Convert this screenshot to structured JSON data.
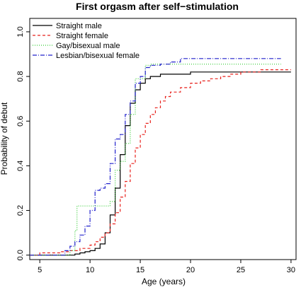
{
  "chart_data": {
    "type": "line",
    "title": "First orgasm after self−stimulation",
    "xlabel": "Age (years)",
    "ylabel": "Probability of debut",
    "xlim": [
      4,
      30.5
    ],
    "ylim": [
      -0.02,
      1.06
    ],
    "x_ticks": [
      5,
      10,
      15,
      20,
      25,
      30
    ],
    "y_ticks": [
      0.0,
      0.2,
      0.4,
      0.6,
      0.8,
      1.0
    ],
    "x_tick_labels": [
      "5",
      "10",
      "15",
      "20",
      "25",
      "30"
    ],
    "y_tick_labels": [
      "0.0",
      "0.2",
      "0.4",
      "0.6",
      "0.8",
      "1.0"
    ],
    "grid": false,
    "legend_position": "top-left",
    "series": [
      {
        "name": "Straight male",
        "color": "#000000",
        "dash": "solid",
        "step": true,
        "points": [
          [
            4,
            0.0
          ],
          [
            8,
            0.0
          ],
          [
            8.5,
            0.005
          ],
          [
            9,
            0.01
          ],
          [
            9.5,
            0.015
          ],
          [
            10,
            0.02
          ],
          [
            10.5,
            0.03
          ],
          [
            11,
            0.05
          ],
          [
            11.5,
            0.1
          ],
          [
            12,
            0.18
          ],
          [
            12.5,
            0.3
          ],
          [
            13,
            0.45
          ],
          [
            13.5,
            0.58
          ],
          [
            14,
            0.68
          ],
          [
            14.5,
            0.74
          ],
          [
            15,
            0.77
          ],
          [
            15.5,
            0.79
          ],
          [
            16,
            0.8
          ],
          [
            17,
            0.81
          ],
          [
            18,
            0.81
          ],
          [
            19,
            0.81
          ],
          [
            20,
            0.82
          ],
          [
            22,
            0.82
          ],
          [
            25,
            0.82
          ],
          [
            30,
            0.82
          ]
        ]
      },
      {
        "name": "Straight female",
        "color": "#e8211c",
        "dash": "dashed",
        "step": true,
        "points": [
          [
            4,
            0.0
          ],
          [
            5,
            0.01
          ],
          [
            6,
            0.01
          ],
          [
            7,
            0.015
          ],
          [
            8,
            0.02
          ],
          [
            9,
            0.03
          ],
          [
            10,
            0.045
          ],
          [
            10.5,
            0.06
          ],
          [
            11,
            0.08
          ],
          [
            11.5,
            0.1
          ],
          [
            12,
            0.14
          ],
          [
            12.5,
            0.19
          ],
          [
            13,
            0.26
          ],
          [
            13.5,
            0.33
          ],
          [
            14,
            0.41
          ],
          [
            14.5,
            0.48
          ],
          [
            15,
            0.54
          ],
          [
            15.5,
            0.59
          ],
          [
            16,
            0.63
          ],
          [
            16.5,
            0.66
          ],
          [
            17,
            0.69
          ],
          [
            17.5,
            0.71
          ],
          [
            18,
            0.73
          ],
          [
            19,
            0.75
          ],
          [
            20,
            0.77
          ],
          [
            21,
            0.78
          ],
          [
            22,
            0.79
          ],
          [
            23,
            0.8
          ],
          [
            24,
            0.81
          ],
          [
            25,
            0.82
          ],
          [
            26,
            0.82
          ],
          [
            27,
            0.83
          ],
          [
            28,
            0.83
          ],
          [
            30,
            0.83
          ]
        ]
      },
      {
        "name": "Gay/bisexual male",
        "color": "#33cc33",
        "dash": "dotted",
        "step": true,
        "points": [
          [
            4,
            0.0
          ],
          [
            7.5,
            0.0
          ],
          [
            8,
            0.02
          ],
          [
            8.5,
            0.11
          ],
          [
            8.7,
            0.22
          ],
          [
            9.5,
            0.22
          ],
          [
            10.5,
            0.22
          ],
          [
            11,
            0.22
          ],
          [
            11.5,
            0.22
          ],
          [
            12,
            0.24
          ],
          [
            12.5,
            0.38
          ],
          [
            13,
            0.42
          ],
          [
            13.5,
            0.5
          ],
          [
            14,
            0.63
          ],
          [
            14.5,
            0.79
          ],
          [
            15,
            0.79
          ],
          [
            15.5,
            0.85
          ],
          [
            16,
            0.855
          ],
          [
            17,
            0.855
          ],
          [
            20,
            0.855
          ],
          [
            25,
            0.855
          ],
          [
            29,
            0.855
          ]
        ]
      },
      {
        "name": "Lesbian/bisexual female",
        "color": "#2222cc",
        "dash": "dashdot",
        "step": true,
        "points": [
          [
            4,
            0.0
          ],
          [
            7,
            0.0
          ],
          [
            7.5,
            0.02
          ],
          [
            8,
            0.04
          ],
          [
            8.5,
            0.06
          ],
          [
            9,
            0.09
          ],
          [
            9.5,
            0.13
          ],
          [
            10,
            0.2
          ],
          [
            10.5,
            0.29
          ],
          [
            11,
            0.3
          ],
          [
            11.5,
            0.32
          ],
          [
            12,
            0.41
          ],
          [
            12.5,
            0.52
          ],
          [
            13,
            0.54
          ],
          [
            13.5,
            0.63
          ],
          [
            14,
            0.69
          ],
          [
            14.5,
            0.77
          ],
          [
            15,
            0.8
          ],
          [
            15.5,
            0.84
          ],
          [
            16,
            0.85
          ],
          [
            17,
            0.855
          ],
          [
            18,
            0.865
          ],
          [
            19,
            0.88
          ],
          [
            20,
            0.88
          ],
          [
            25,
            0.88
          ],
          [
            29,
            0.88
          ]
        ]
      }
    ]
  }
}
